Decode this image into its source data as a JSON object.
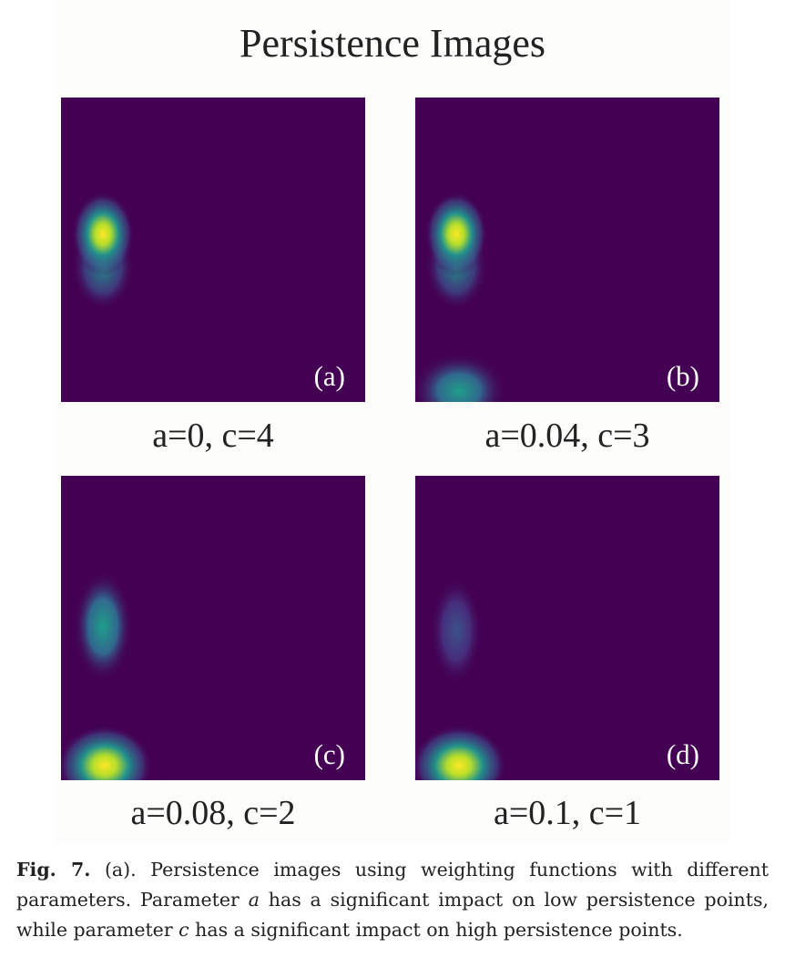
{
  "figure": {
    "title": "Persistence Images",
    "panels": [
      {
        "tag": "(a)",
        "params": "a=0, c=4"
      },
      {
        "tag": "(b)",
        "params": "a=0.04, c=3"
      },
      {
        "tag": "(c)",
        "params": "a=0.08, c=2"
      },
      {
        "tag": "(d)",
        "params": "a=0.1, c=1"
      }
    ],
    "colors": {
      "background": "#440154",
      "low": "#3b528b",
      "mid": "#21918c",
      "high": "#fde725"
    }
  },
  "caption": {
    "label": "Fig. 7.",
    "part1": " (a). Persistence images using weighting functions with different parameters. Parameter ",
    "var_a": "a",
    "part2": " has a significant impact on low persistence points, while parameter ",
    "var_c": "c",
    "part3": " has a significant impact on high persistence points."
  }
}
